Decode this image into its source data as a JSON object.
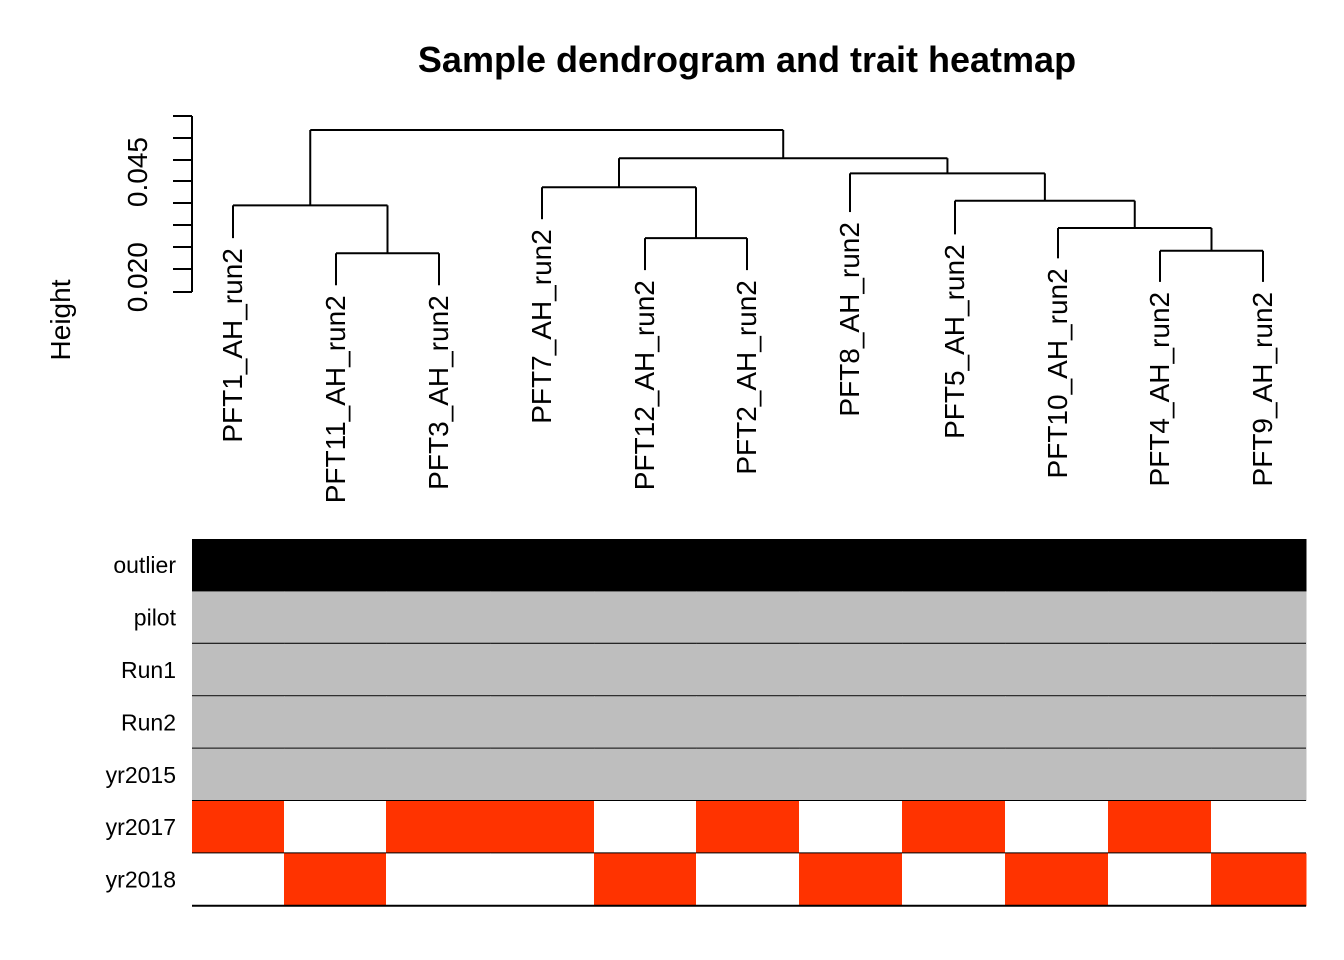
{
  "chart_data": {
    "type": "heatmap",
    "title": "Sample dendrogram and trait heatmap",
    "ylabel": "Height",
    "y_ticks": [
      "0.020",
      "0.045"
    ],
    "y_tick_values": [
      0.02,
      0.045
    ],
    "ylim": [
      0.0165,
      0.0551
    ],
    "leaves": [
      "PFT1_AH_run2",
      "PFT11_AH_run2",
      "PFT3_AH_run2",
      "PFT7_AH_run2",
      "PFT12_AH_run2",
      "PFT2_AH_run2",
      "PFT8_AH_run2",
      "PFT5_AH_run2",
      "PFT10_AH_run2",
      "PFT4_AH_run2",
      "PFT9_AH_run2"
    ],
    "leaf_heights": [
      0.0293,
      0.0181,
      0.0181,
      0.0338,
      0.0217,
      0.0217,
      0.0355,
      0.0302,
      0.0245,
      0.0189,
      0.0189
    ],
    "merges": [
      {
        "a": "L1",
        "b": "L2",
        "height": 0.0257,
        "id": "m1"
      },
      {
        "a": "L0",
        "b": "m1",
        "height": 0.0371,
        "id": "m2"
      },
      {
        "a": "L4",
        "b": "L5",
        "height": 0.0293,
        "id": "m3"
      },
      {
        "a": "L3",
        "b": "m3",
        "height": 0.0414,
        "id": "m4"
      },
      {
        "a": "L9",
        "b": "L10",
        "height": 0.0263,
        "id": "m5"
      },
      {
        "a": "L8",
        "b": "m5",
        "height": 0.0317,
        "id": "m6"
      },
      {
        "a": "L7",
        "b": "m6",
        "height": 0.0382,
        "id": "m7"
      },
      {
        "a": "L6",
        "b": "m7",
        "height": 0.0447,
        "id": "m8"
      },
      {
        "a": "m4",
        "b": "m8",
        "height": 0.0483,
        "id": "m9"
      },
      {
        "a": "m2",
        "b": "m9",
        "height": 0.055,
        "id": "m10"
      }
    ],
    "traits": [
      "outlier",
      "pilot",
      "Run1",
      "Run2",
      "yr2015",
      "yr2017",
      "yr2018"
    ],
    "trait_values": [
      [
        1,
        1,
        1,
        1,
        1,
        1,
        1,
        1,
        1,
        1,
        1
      ],
      [
        0,
        0,
        0,
        0,
        0,
        0,
        0,
        0,
        0,
        0,
        0
      ],
      [
        0,
        0,
        0,
        0,
        0,
        0,
        0,
        0,
        0,
        0,
        0
      ],
      [
        0,
        0,
        0,
        0,
        0,
        0,
        0,
        0,
        0,
        0,
        0
      ],
      [
        0,
        0,
        0,
        0,
        0,
        0,
        0,
        0,
        0,
        0,
        0
      ],
      [
        1,
        0,
        1,
        1,
        0,
        1,
        0,
        1,
        0,
        1,
        0
      ],
      [
        0,
        1,
        0,
        0,
        1,
        0,
        1,
        0,
        1,
        0,
        1
      ]
    ],
    "colors": {
      "outlier": "#000000",
      "constant": "#bebebe",
      "present": "#ff3300",
      "absent": "#ffffff",
      "line": "#000000"
    }
  }
}
